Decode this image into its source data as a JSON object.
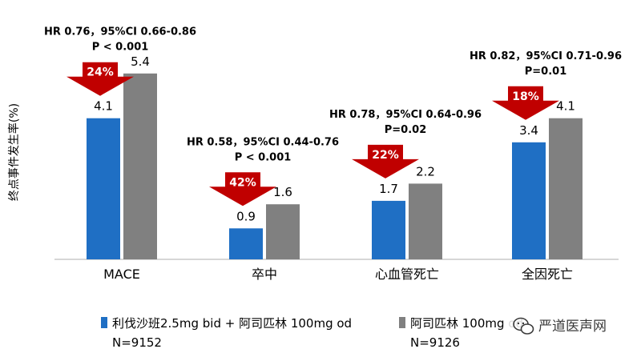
{
  "chart_data": {
    "type": "bar",
    "ylabel": "终点事件发生率(%)",
    "ylim": [
      0,
      6.5
    ],
    "categories": [
      "MACE",
      "卒中",
      "心血管死亡",
      "全因死亡"
    ],
    "series": [
      {
        "name": "利伐沙班2.5mg bid + 阿司匹林 100mg od",
        "n_label": "N=9152",
        "color": "#1f6fc4",
        "values": [
          4.1,
          0.9,
          1.7,
          3.4
        ]
      },
      {
        "name": "阿司匹林 100mg od",
        "n_label": "N=9126",
        "color": "#808080",
        "values": [
          5.4,
          1.6,
          2.2,
          4.1
        ]
      }
    ],
    "annotations": [
      {
        "line1": "HR 0.76，95%CI 0.66-0.86",
        "line2": "P < 0.001",
        "reduction": "24%"
      },
      {
        "line1": "HR 0.58，95%CI 0.44-0.76",
        "line2": "P < 0.001",
        "reduction": "42%"
      },
      {
        "line1": "HR 0.78，95%CI 0.64-0.96",
        "line2": "P=0.02",
        "reduction": "22%"
      },
      {
        "line1": "HR 0.82，95%CI 0.71-0.96",
        "line2": "P=0.01",
        "reduction": "18%"
      }
    ],
    "arrow_color": "#c00000",
    "grid": false,
    "legend_position": "bottom"
  },
  "watermark": {
    "text": "严道医声网",
    "icon": "wechat-icon"
  }
}
